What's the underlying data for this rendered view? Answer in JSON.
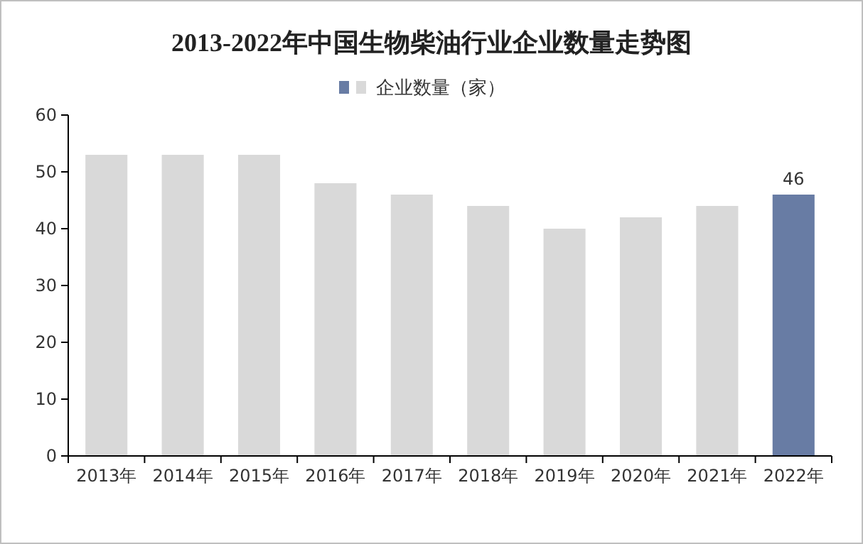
{
  "chart_data": {
    "type": "bar",
    "title": "2013-2022年中国生物柴油行业企业数量走势图",
    "categories": [
      "2013年",
      "2014年",
      "2015年",
      "2016年",
      "2017年",
      "2018年",
      "2019年",
      "2020年",
      "2021年",
      "2022年"
    ],
    "series": [
      {
        "name": "企业数量（家）",
        "values": [
          53,
          53,
          53,
          48,
          46,
          44,
          40,
          42,
          44,
          46
        ],
        "colors": [
          "#d9d9d9",
          "#d9d9d9",
          "#d9d9d9",
          "#d9d9d9",
          "#d9d9d9",
          "#d9d9d9",
          "#d9d9d9",
          "#d9d9d9",
          "#d9d9d9",
          "#687ca4"
        ],
        "value_labels": [
          null,
          null,
          null,
          null,
          null,
          null,
          null,
          null,
          null,
          "46"
        ]
      }
    ],
    "ylim": [
      0,
      60
    ],
    "yticks": [
      0,
      10,
      20,
      30,
      40,
      50,
      60
    ],
    "legend": "top"
  }
}
